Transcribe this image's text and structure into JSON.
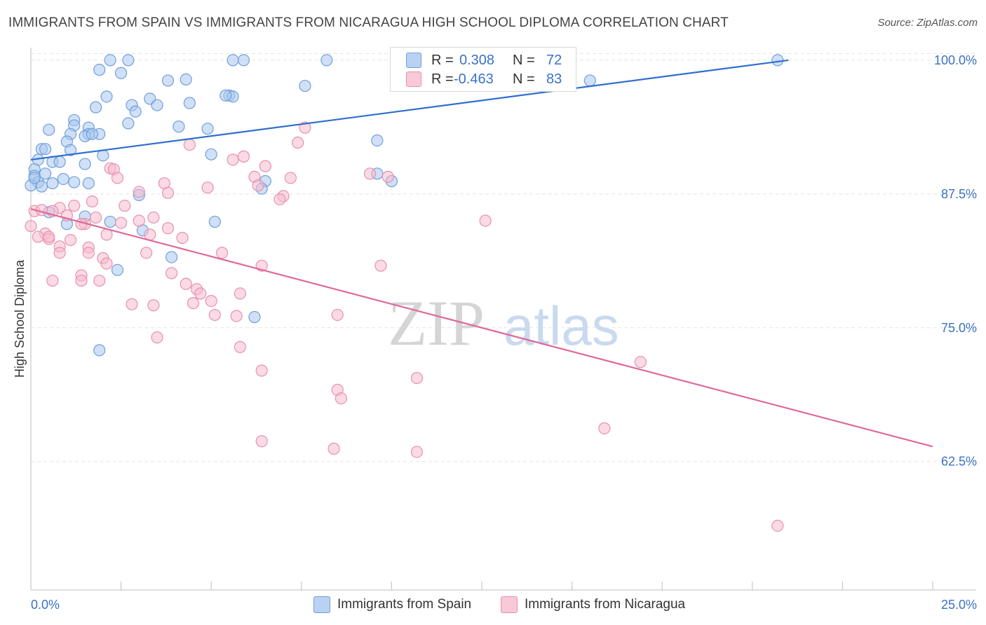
{
  "title": "IMMIGRANTS FROM SPAIN VS IMMIGRANTS FROM NICARAGUA HIGH SCHOOL DIPLOMA CORRELATION CHART",
  "source": "Source: ZipAtlas.com",
  "watermark": {
    "part1": "ZIP",
    "part2": "atlas"
  },
  "legend": {
    "rows": [
      {
        "r_label": "R =",
        "r_value": "0.308",
        "n_label": "N =",
        "n_value": "72"
      },
      {
        "r_label": "R =",
        "r_value": "-0.463",
        "n_label": "N =",
        "n_value": "83"
      }
    ]
  },
  "bottom_legend": [
    {
      "label": "Immigrants from Spain"
    },
    {
      "label": "Immigrants from Nicaragua"
    }
  ],
  "chart_data": {
    "type": "scatter",
    "ylabel": "High School Diploma",
    "xlim": [
      0,
      25
    ],
    "ylim": [
      50.5,
      101.5
    ],
    "x_tick_labels": [
      "0.0%",
      "25.0%"
    ],
    "y_ticks": [
      62.5,
      75.0,
      87.5,
      100.0
    ],
    "y_tick_labels": [
      "62.5%",
      "75.0%",
      "87.5%",
      "100.0%"
    ],
    "grid": true,
    "colors": {
      "spain_fill": "#a9c7ef",
      "spain_stroke": "#6f9fdc",
      "spain_line": "#2f6fcf",
      "nicaragua_fill": "#f6bccd",
      "nicaragua_stroke": "#e891ad",
      "nicaragua_line": "#e0689a",
      "tick_label": "#3a72c4",
      "grid": "#e4e4e4"
    },
    "series": [
      {
        "name": "Immigrants from Spain",
        "trend": {
          "x": [
            0.0,
            21.0
          ],
          "y": [
            90.7,
            100.0
          ]
        },
        "points": [
          [
            2.2,
            100.0
          ],
          [
            2.7,
            100.0
          ],
          [
            5.6,
            100.0
          ],
          [
            5.9,
            100.0
          ],
          [
            8.2,
            100.0
          ],
          [
            10.8,
            100.0
          ],
          [
            20.7,
            100.0
          ],
          [
            1.9,
            99.1
          ],
          [
            2.5,
            98.8
          ],
          [
            3.8,
            98.1
          ],
          [
            4.3,
            98.2
          ],
          [
            15.5,
            98.1
          ],
          [
            7.6,
            97.6
          ],
          [
            2.1,
            96.6
          ],
          [
            3.3,
            96.4
          ],
          [
            4.4,
            96.0
          ],
          [
            5.5,
            96.7
          ],
          [
            5.6,
            96.6
          ],
          [
            5.4,
            96.7
          ],
          [
            1.8,
            95.6
          ],
          [
            2.8,
            95.8
          ],
          [
            2.9,
            95.2
          ],
          [
            3.5,
            95.8
          ],
          [
            1.2,
            94.4
          ],
          [
            2.7,
            94.1
          ],
          [
            4.1,
            93.8
          ],
          [
            4.9,
            93.6
          ],
          [
            1.6,
            93.7
          ],
          [
            1.2,
            93.9
          ],
          [
            0.5,
            93.5
          ],
          [
            1.1,
            93.1
          ],
          [
            1.6,
            93.1
          ],
          [
            1.5,
            92.9
          ],
          [
            1.9,
            93.1
          ],
          [
            1.7,
            93.1
          ],
          [
            1.0,
            92.4
          ],
          [
            9.6,
            92.5
          ],
          [
            0.3,
            91.7
          ],
          [
            0.4,
            91.7
          ],
          [
            1.1,
            91.6
          ],
          [
            2.0,
            91.1
          ],
          [
            5.0,
            91.2
          ],
          [
            0.2,
            90.7
          ],
          [
            0.6,
            90.5
          ],
          [
            0.8,
            90.5
          ],
          [
            1.5,
            90.3
          ],
          [
            0.1,
            89.8
          ],
          [
            0.4,
            89.4
          ],
          [
            0.1,
            89.2
          ],
          [
            0.9,
            88.9
          ],
          [
            0.2,
            88.6
          ],
          [
            0.6,
            88.5
          ],
          [
            1.2,
            88.6
          ],
          [
            0.0,
            88.3
          ],
          [
            6.5,
            88.7
          ],
          [
            9.6,
            89.4
          ],
          [
            10.0,
            88.7
          ],
          [
            0.5,
            85.8
          ],
          [
            1.5,
            85.4
          ],
          [
            2.2,
            84.9
          ],
          [
            1.0,
            84.7
          ],
          [
            5.1,
            84.9
          ],
          [
            3.1,
            84.1
          ],
          [
            3.0,
            87.4
          ],
          [
            0.1,
            89.0
          ],
          [
            2.4,
            80.4
          ],
          [
            3.9,
            81.6
          ],
          [
            6.2,
            76.0
          ],
          [
            1.9,
            72.9
          ],
          [
            6.4,
            88.0
          ],
          [
            0.3,
            88.2
          ],
          [
            1.6,
            88.5
          ]
        ]
      },
      {
        "name": "Immigrants from Nicaragua",
        "trend": {
          "x": [
            0.0,
            25.0
          ],
          "y": [
            86.1,
            63.9
          ]
        },
        "points": [
          [
            7.6,
            93.7
          ],
          [
            7.4,
            92.3
          ],
          [
            4.4,
            92.1
          ],
          [
            5.9,
            91.0
          ],
          [
            5.6,
            90.7
          ],
          [
            6.5,
            90.1
          ],
          [
            2.2,
            89.9
          ],
          [
            2.3,
            89.8
          ],
          [
            9.4,
            89.4
          ],
          [
            9.9,
            89.1
          ],
          [
            6.2,
            89.1
          ],
          [
            7.2,
            89.0
          ],
          [
            2.4,
            89.0
          ],
          [
            3.7,
            88.5
          ],
          [
            6.3,
            88.3
          ],
          [
            4.9,
            88.1
          ],
          [
            3.0,
            87.7
          ],
          [
            3.8,
            87.6
          ],
          [
            7.0,
            87.3
          ],
          [
            6.9,
            87.0
          ],
          [
            1.7,
            86.8
          ],
          [
            0.8,
            86.2
          ],
          [
            2.6,
            86.4
          ],
          [
            0.1,
            85.9
          ],
          [
            0.6,
            85.9
          ],
          [
            3.4,
            85.3
          ],
          [
            1.8,
            85.3
          ],
          [
            2.5,
            84.8
          ],
          [
            3.8,
            84.3
          ],
          [
            1.5,
            84.7
          ],
          [
            0.4,
            83.8
          ],
          [
            0.5,
            83.3
          ],
          [
            0.2,
            83.5
          ],
          [
            2.1,
            83.7
          ],
          [
            3.3,
            83.7
          ],
          [
            4.2,
            83.4
          ],
          [
            1.1,
            83.2
          ],
          [
            1.6,
            82.5
          ],
          [
            0.8,
            82.6
          ],
          [
            3.2,
            82.0
          ],
          [
            5.3,
            82.0
          ],
          [
            0.8,
            82.0
          ],
          [
            1.6,
            82.0
          ],
          [
            2.0,
            81.5
          ],
          [
            6.4,
            80.8
          ],
          [
            9.7,
            80.8
          ],
          [
            3.9,
            80.1
          ],
          [
            1.4,
            79.9
          ],
          [
            0.6,
            79.4
          ],
          [
            1.4,
            79.4
          ],
          [
            1.9,
            79.4
          ],
          [
            4.3,
            79.1
          ],
          [
            4.6,
            78.6
          ],
          [
            4.7,
            78.2
          ],
          [
            5.8,
            78.2
          ],
          [
            4.5,
            77.3
          ],
          [
            5.0,
            77.5
          ],
          [
            5.1,
            76.2
          ],
          [
            5.7,
            76.1
          ],
          [
            3.4,
            77.1
          ],
          [
            2.8,
            77.2
          ],
          [
            8.5,
            76.2
          ],
          [
            3.5,
            74.1
          ],
          [
            5.8,
            73.2
          ],
          [
            6.4,
            71.0
          ],
          [
            10.7,
            70.3
          ],
          [
            8.5,
            69.2
          ],
          [
            8.6,
            68.4
          ],
          [
            16.9,
            71.8
          ],
          [
            15.9,
            65.6
          ],
          [
            8.4,
            63.7
          ],
          [
            10.7,
            63.4
          ],
          [
            6.4,
            64.4
          ],
          [
            20.7,
            56.5
          ],
          [
            12.6,
            85.0
          ],
          [
            1.2,
            86.4
          ],
          [
            1.4,
            84.7
          ],
          [
            3.0,
            85.0
          ],
          [
            2.1,
            81.0
          ],
          [
            0.3,
            86.0
          ],
          [
            0.5,
            83.5
          ],
          [
            0.0,
            84.5
          ],
          [
            1.0,
            85.5
          ]
        ]
      }
    ]
  }
}
